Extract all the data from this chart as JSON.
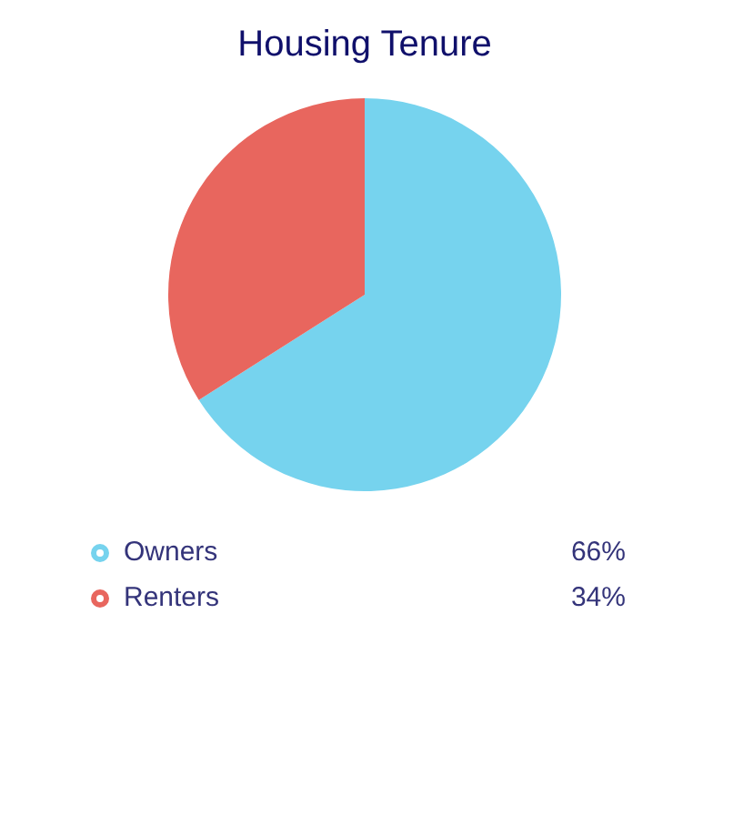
{
  "chart_data": {
    "type": "pie",
    "title": "Housing Tenure",
    "categories": [
      "Owners",
      "Renters"
    ],
    "values": [
      66,
      34
    ],
    "colors": [
      "#76d3ee",
      "#e8665e"
    ],
    "value_labels": [
      "66%",
      "34%"
    ],
    "legend": "bottom"
  }
}
